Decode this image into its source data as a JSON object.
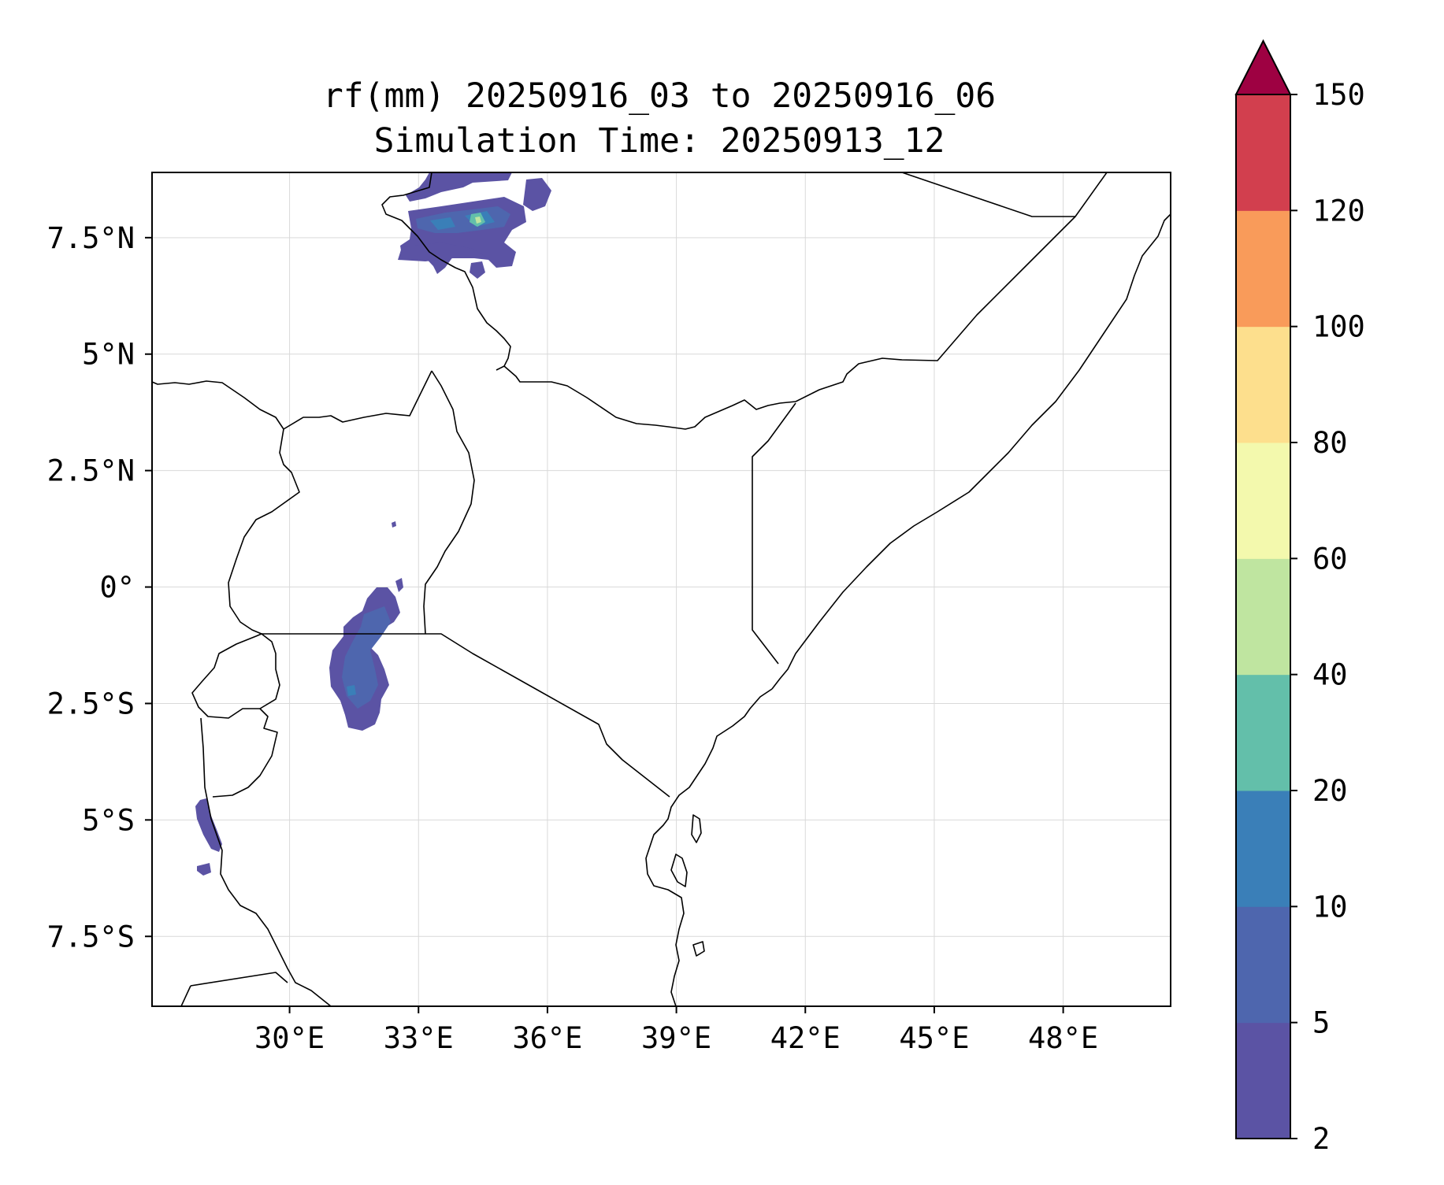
{
  "title": {
    "line1": "rf(mm) 20250916_03 to 20250916_06",
    "line2": "Simulation Time: 20250913_12"
  },
  "map": {
    "lon_range": [
      26.8,
      50.5
    ],
    "lat_range": [
      -9.0,
      8.9
    ],
    "x_ticks": [
      {
        "value": 30,
        "label": "30°E"
      },
      {
        "value": 33,
        "label": "33°E"
      },
      {
        "value": 36,
        "label": "36°E"
      },
      {
        "value": 39,
        "label": "39°E"
      },
      {
        "value": 42,
        "label": "42°E"
      },
      {
        "value": 45,
        "label": "45°E"
      },
      {
        "value": 48,
        "label": "48°E"
      }
    ],
    "y_ticks": [
      {
        "value": 7.5,
        "label": "7.5°N"
      },
      {
        "value": 5,
        "label": "5°N"
      },
      {
        "value": 2.5,
        "label": "2.5°N"
      },
      {
        "value": 0,
        "label": "0°"
      },
      {
        "value": -2.5,
        "label": "2.5°S"
      },
      {
        "value": -5,
        "label": "5°S"
      },
      {
        "value": -7.5,
        "label": "7.5°S"
      }
    ],
    "grid": true
  },
  "colorbar": {
    "levels": [
      "2",
      "5",
      "10",
      "20",
      "40",
      "60",
      "80",
      "100",
      "120",
      "150"
    ],
    "colors": [
      "#5b53a4",
      "#4e66ae",
      "#3a7fb8",
      "#63bfaa",
      "#bfe5a0",
      "#f3f9ad",
      "#fddf8d",
      "#f99b5a",
      "#d23f4e"
    ],
    "extend_color": "#9e0142",
    "extend": "max"
  },
  "rain_colors": {
    "level_2_5": "#5b53a4",
    "level_5_10": "#4e66ae",
    "level_10_20": "#3a7fb8",
    "level_20_40": "#63bfaa",
    "level_40_60": "#bfe5a0"
  }
}
